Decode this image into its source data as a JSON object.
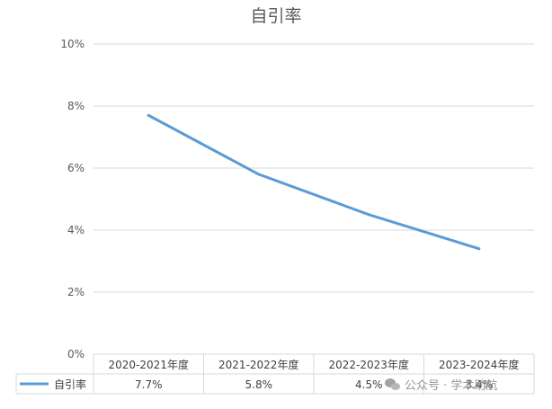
{
  "chart_data": {
    "type": "line",
    "title": "自引率",
    "categories": [
      "2020-2021年度",
      "2021-2022年度",
      "2022-2023年度",
      "2023-2024年度"
    ],
    "series": [
      {
        "name": "自引率",
        "values": [
          7.7,
          5.8,
          4.5,
          3.4
        ],
        "labels": [
          "7.7%",
          "5.8%",
          "4.5%",
          "3.4%"
        ],
        "color": "#5b9bd5"
      }
    ],
    "ylim": [
      0,
      10
    ],
    "yticks": [
      "0%",
      "2%",
      "4%",
      "6%",
      "8%",
      "10%"
    ],
    "grid": true,
    "legend": "data-table"
  },
  "watermark": {
    "text": "公众号 · 学术助航"
  }
}
